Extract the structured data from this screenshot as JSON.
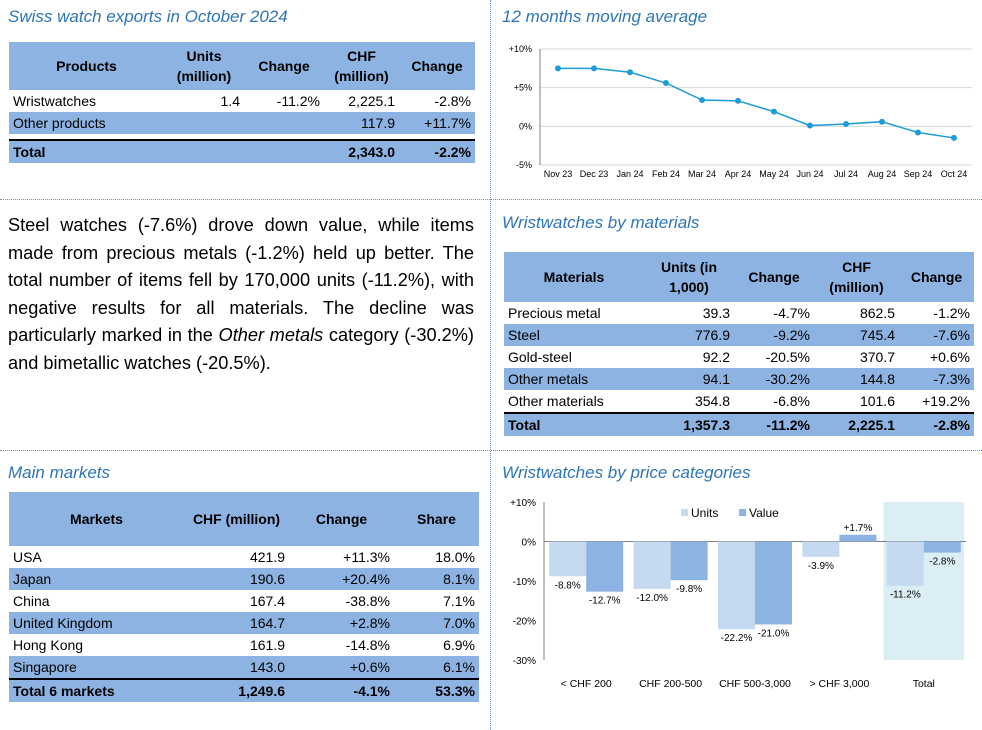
{
  "exports": {
    "title": "Swiss watch exports in October 2024",
    "headers": [
      "Products",
      "Units (million)",
      "Change",
      "CHF (million)",
      "Change"
    ],
    "rows": [
      {
        "name": "Wristwatches",
        "units": "1.4",
        "uchg": "-11.2%",
        "chf": "2,225.1",
        "cchg": "-2.8%"
      },
      {
        "name": "Other products",
        "units": "",
        "uchg": "",
        "chf": "117.9",
        "cchg": "+11.7%"
      }
    ],
    "total": {
      "name": "Total",
      "units": "",
      "uchg": "",
      "chf": "2,343.0",
      "cchg": "-2.2%"
    }
  },
  "moving_avg": {
    "title": "12 months moving average",
    "chart_data": {
      "type": "line",
      "x": [
        "Nov 23",
        "Dec 23",
        "Jan 24",
        "Feb 24",
        "Mar 24",
        "Apr 24",
        "May 24",
        "Jun 24",
        "Jul 24",
        "Aug 24",
        "Sep 24",
        "Oct 24"
      ],
      "values": [
        7.5,
        7.5,
        7.0,
        5.6,
        3.4,
        3.3,
        1.9,
        0.1,
        0.3,
        0.6,
        -0.8,
        -1.5
      ],
      "y_ticks": [
        "+10%",
        "+5%",
        "0%",
        "-5%"
      ],
      "ylim": [
        -5,
        10
      ],
      "grid": true,
      "color": "#1f9bd7"
    }
  },
  "paragraph": {
    "p1": "Steel watches (-7.6%) drove down value, while items made from precious metals (-1.2%) held up better. The total number of items fell by 170,000 units (-11.2%), with negative results for all materials. The decline was particularly marked in the ",
    "em": "Other metals",
    "p2": " category (-30.2%) and bimetallic watches (-20.5%)."
  },
  "materials": {
    "title": "Wristwatches by materials",
    "headers": [
      "Materials",
      "Units (in 1,000)",
      "Change",
      "CHF (million)",
      "Change"
    ],
    "rows": [
      {
        "name": "Precious metal",
        "units": "39.3",
        "uchg": "-4.7%",
        "chf": "862.5",
        "cchg": "-1.2%"
      },
      {
        "name": "Steel",
        "units": "776.9",
        "uchg": "-9.2%",
        "chf": "745.4",
        "cchg": "-7.6%"
      },
      {
        "name": "Gold-steel",
        "units": "92.2",
        "uchg": "-20.5%",
        "chf": "370.7",
        "cchg": "+0.6%"
      },
      {
        "name": "Other metals",
        "units": "94.1",
        "uchg": "-30.2%",
        "chf": "144.8",
        "cchg": "-7.3%"
      },
      {
        "name": "Other materials",
        "units": "354.8",
        "uchg": "-6.8%",
        "chf": "101.6",
        "cchg": "+19.2%"
      }
    ],
    "total": {
      "name": "Total",
      "units": "1,357.3",
      "uchg": "-11.2%",
      "chf": "2,225.1",
      "cchg": "-2.8%"
    }
  },
  "markets": {
    "title": "Main markets",
    "headers": [
      "Markets",
      "CHF (million)",
      "Change",
      "Share"
    ],
    "rows": [
      {
        "name": "USA",
        "chf": "421.9",
        "chg": "+11.3%",
        "share": "18.0%"
      },
      {
        "name": "Japan",
        "chf": "190.6",
        "chg": "+20.4%",
        "share": "8.1%"
      },
      {
        "name": "China",
        "chf": "167.4",
        "chg": "-38.8%",
        "share": "7.1%"
      },
      {
        "name": "United Kingdom",
        "chf": "164.7",
        "chg": "+2.8%",
        "share": "7.0%"
      },
      {
        "name": "Hong Kong",
        "chf": "161.9",
        "chg": "-14.8%",
        "share": "6.9%"
      },
      {
        "name": "Singapore",
        "chf": "143.0",
        "chg": "+0.6%",
        "share": "6.1%"
      }
    ],
    "total": {
      "name": "Total 6 markets",
      "chf": "1,249.6",
      "chg": "-4.1%",
      "share": "53.3%"
    }
  },
  "price_cats": {
    "title": "Wristwatches by price categories",
    "chart_data": {
      "type": "bar",
      "categories": [
        "< CHF 200",
        "CHF 200-500",
        "CHF 500-3,000",
        "> CHF 3,000",
        "Total"
      ],
      "series": [
        {
          "name": "Units",
          "values": [
            -8.8,
            -12.0,
            -22.2,
            -3.9,
            -11.2
          ],
          "labels": [
            "-8.8%",
            "-12.0%",
            "-22.2%",
            "-3.9%",
            "-11.2%"
          ],
          "color": "#c5d9f1"
        },
        {
          "name": "Value",
          "values": [
            -12.7,
            -9.8,
            -21.0,
            1.7,
            -2.8
          ],
          "labels": [
            "-12.7%",
            "-9.8%",
            "-21.0%",
            "+1.7%",
            "-2.8%"
          ],
          "color": "#8db3e2"
        }
      ],
      "y_ticks": [
        "+10%",
        "0%",
        "-10%",
        "-20%",
        "-30%"
      ],
      "ylim": [
        -30,
        10
      ],
      "legend": "top",
      "highlight_color": "#dbeef4"
    }
  }
}
